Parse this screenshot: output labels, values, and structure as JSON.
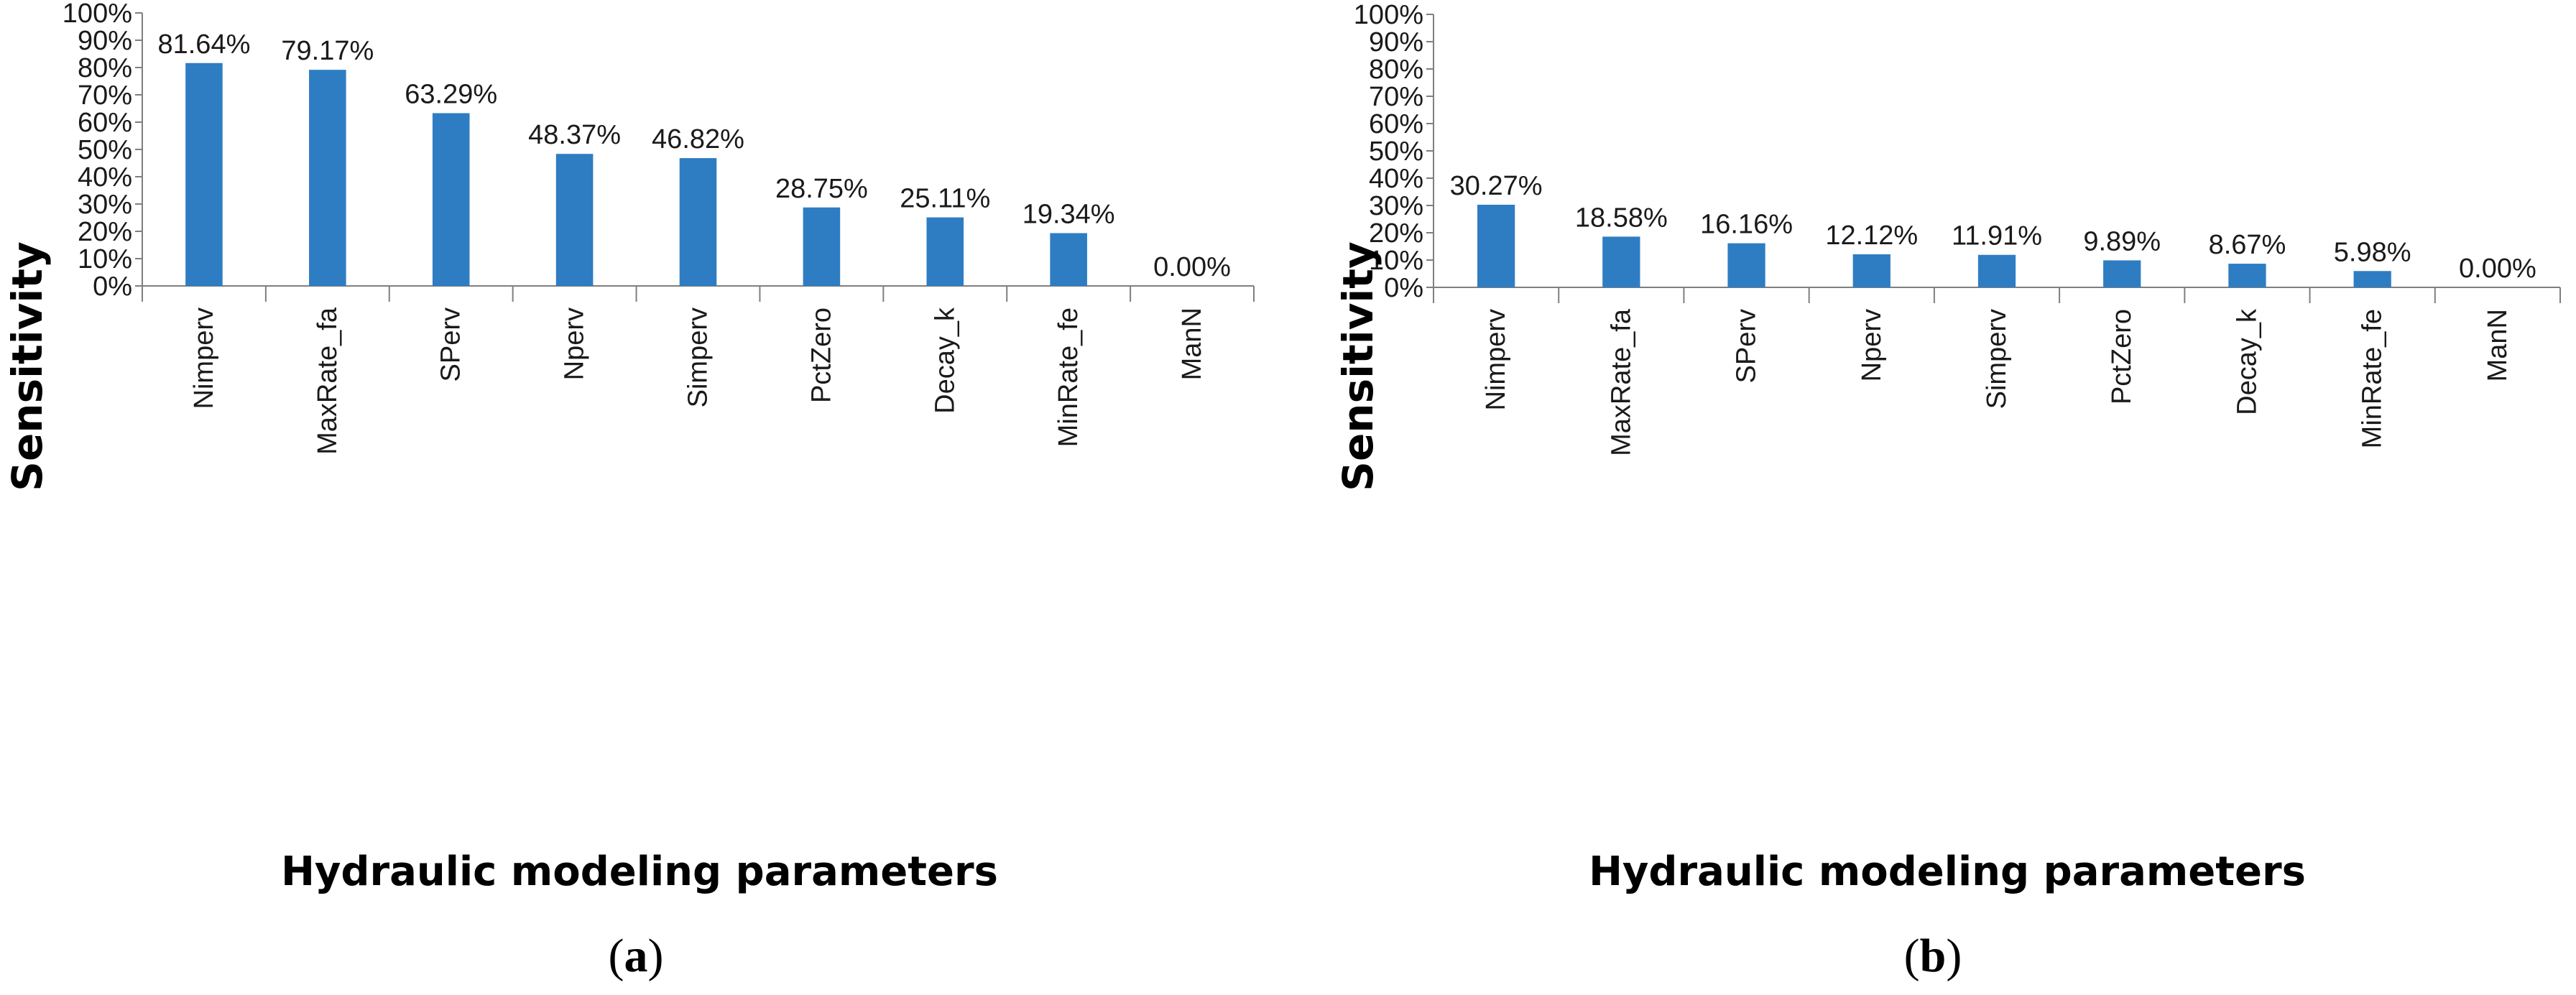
{
  "chart_data": [
    {
      "type": "bar",
      "panel_label": "(a)",
      "caption": {
        "open": "(",
        "letter": "a",
        "close": ")"
      },
      "categories": [
        "Nimperv",
        "MaxRate_fa",
        "SPerv",
        "Nperv",
        "Simperv",
        "PctZero",
        "Decay_k",
        "MinRate_fe",
        "ManN"
      ],
      "values": [
        81.64,
        79.17,
        63.29,
        48.37,
        46.82,
        28.75,
        25.11,
        19.34,
        0.0
      ],
      "data_labels": [
        "81.64%",
        "79.17%",
        "63.29%",
        "48.37%",
        "46.82%",
        "28.75%",
        "25.11%",
        "19.34%",
        "0.00%"
      ],
      "ylabel": "Sensitivity",
      "xlabel": "Hydraulic modeling parameters",
      "ylim": [
        0,
        100
      ],
      "yticks": [
        "0%",
        "10%",
        "20%",
        "30%",
        "40%",
        "50%",
        "60%",
        "70%",
        "80%",
        "90%",
        "100%"
      ],
      "grid": false,
      "bar_color": "#2e7dc3"
    },
    {
      "type": "bar",
      "panel_label": "(b)",
      "caption": {
        "open": "(",
        "letter": "b",
        "close": ")"
      },
      "categories": [
        "Nimperv",
        "MaxRate_fa",
        "SPerv",
        "Nperv",
        "Simperv",
        "PctZero",
        "Decay_k",
        "MinRate_fe",
        "ManN"
      ],
      "values": [
        30.27,
        18.58,
        16.16,
        12.12,
        11.91,
        9.89,
        8.67,
        5.98,
        0.0
      ],
      "data_labels": [
        "30.27%",
        "18.58%",
        "16.16%",
        "12.12%",
        "11.91%",
        "9.89%",
        "8.67%",
        "5.98%",
        "0.00%"
      ],
      "ylabel": "Sensitivity",
      "xlabel": "Hydraulic modeling parameters",
      "ylim": [
        0,
        100
      ],
      "yticks": [
        "0%",
        "10%",
        "20%",
        "30%",
        "40%",
        "50%",
        "60%",
        "70%",
        "80%",
        "90%",
        "100%"
      ],
      "grid": false,
      "bar_color": "#2e7dc3"
    }
  ]
}
